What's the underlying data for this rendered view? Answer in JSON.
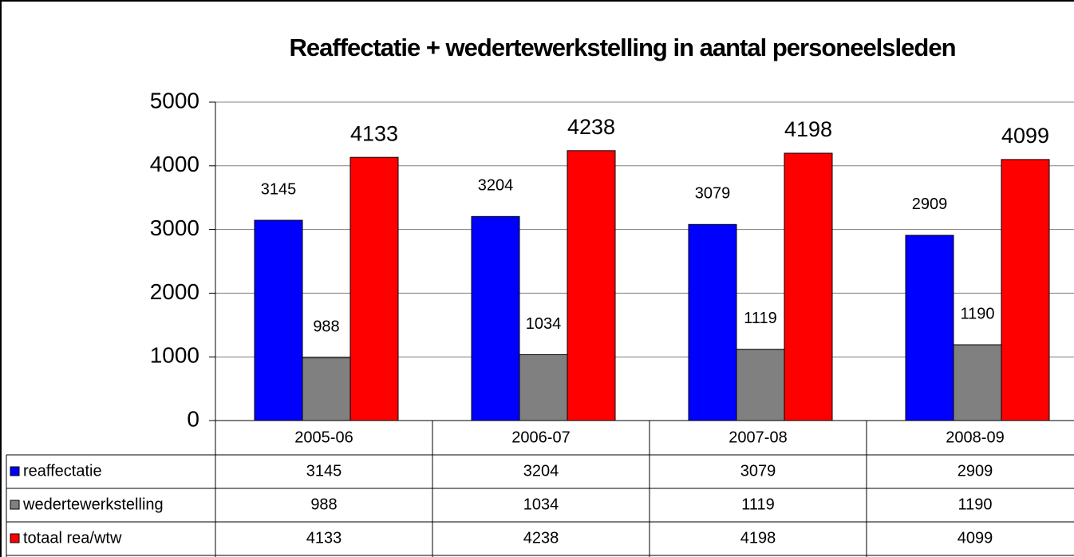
{
  "chart_data": {
    "type": "bar",
    "title": "Reaffectatie + wedertewerkstelling in aantal personeelsleden",
    "categories": [
      "2005-06",
      "2006-07",
      "2007-08",
      "2008-09"
    ],
    "series": [
      {
        "name": "reaffectatie",
        "color": "#0000ff",
        "values": [
          3145,
          3204,
          3079,
          2909
        ]
      },
      {
        "name": "wedertewerkstelling",
        "color": "#808080",
        "values": [
          988,
          1034,
          1119,
          1190
        ]
      },
      {
        "name": "totaal rea/wtw",
        "color": "#ff0000",
        "values": [
          4133,
          4238,
          4198,
          4099
        ]
      }
    ],
    "ylim": [
      0,
      5000
    ],
    "yticks": [
      0,
      1000,
      2000,
      3000,
      4000,
      5000
    ],
    "grid": true
  }
}
